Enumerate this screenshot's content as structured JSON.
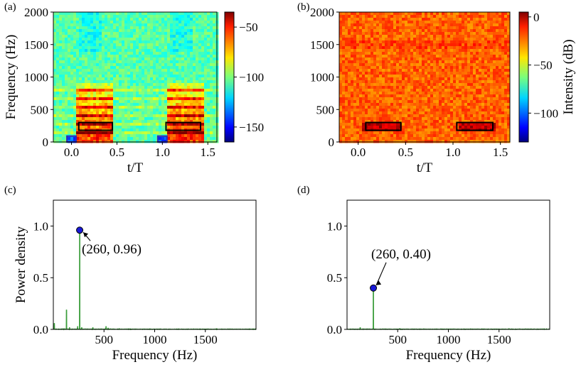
{
  "chart_data": [
    {
      "panel": "(a)",
      "type": "heatmap",
      "description": "Spectrogram",
      "xlabel": "t/T",
      "ylabel": "Frequency (Hz)",
      "xlim": [
        -0.2,
        1.6
      ],
      "ylim": [
        0,
        2000
      ],
      "xticks": [
        0.0,
        0.5,
        1.0,
        1.5
      ],
      "xtick_labels": [
        "0.0",
        "0.5",
        "1.0",
        "1.5"
      ],
      "yticks": [
        0,
        500,
        1000,
        1500,
        2000
      ],
      "ytick_labels": [
        "0",
        "500",
        "1000",
        "1500",
        "2000"
      ],
      "colorbar": {
        "range": [
          -165,
          -35
        ],
        "ticks": [
          -50,
          -100,
          -150
        ],
        "tick_labels": [
          "−50",
          "−100",
          "−150"
        ],
        "label": ""
      },
      "harmonic_lines_hz": [
        130,
        260,
        390,
        520,
        650,
        780
      ],
      "burst_intervals_t": [
        [
          0.05,
          0.45
        ],
        [
          1.05,
          1.45
        ]
      ],
      "black_boxes": [
        {
          "t": [
            0.08,
            0.45
          ],
          "f": [
            180,
            300
          ]
        },
        {
          "t": [
            1.04,
            1.42
          ],
          "f": [
            180,
            300
          ]
        }
      ],
      "blue_boxes": [
        {
          "t": [
            -0.05,
            0.05
          ],
          "f": [
            0,
            90
          ]
        },
        {
          "t": [
            0.95,
            1.05
          ],
          "f": [
            0,
            90
          ]
        }
      ]
    },
    {
      "panel": "(b)",
      "type": "heatmap",
      "description": "Spectrogram",
      "xlabel": "t/T",
      "ylabel": "",
      "xlim": [
        -0.2,
        1.6
      ],
      "ylim": [
        0,
        2000
      ],
      "xticks": [
        0.0,
        0.5,
        1.0,
        1.5
      ],
      "xtick_labels": [
        "0.0",
        "0.5",
        "1.0",
        "1.5"
      ],
      "yticks": [
        0,
        500,
        1000,
        1500,
        2000
      ],
      "ytick_labels": [
        "0",
        "500",
        "1000",
        "1500",
        "2000"
      ],
      "colorbar": {
        "range": [
          -130,
          5
        ],
        "ticks": [
          0,
          -50,
          -100
        ],
        "tick_labels": [
          "0",
          "−50",
          "−100"
        ],
        "label": "Intensity (dB)"
      },
      "black_boxes": [
        {
          "t": [
            0.08,
            0.45
          ],
          "f": [
            180,
            300
          ]
        },
        {
          "t": [
            1.04,
            1.42
          ],
          "f": [
            180,
            300
          ]
        }
      ]
    },
    {
      "panel": "(c)",
      "type": "line",
      "xlabel": "Frequency (Hz)",
      "ylabel": "Power density",
      "xlim": [
        0,
        2000
      ],
      "ylim": [
        0,
        1.25
      ],
      "xticks": [
        500,
        1000,
        1500
      ],
      "xtick_labels": [
        "500",
        "1000",
        "1500"
      ],
      "yticks": [
        0,
        0.5,
        1.0
      ],
      "ytick_labels": [
        "0.0",
        "0.5",
        "1.0"
      ],
      "peaks": [
        {
          "x": 10,
          "y": 0.06
        },
        {
          "x": 130,
          "y": 0.19
        },
        {
          "x": 160,
          "y": 0.02
        },
        {
          "x": 240,
          "y": 0.03
        },
        {
          "x": 260,
          "y": 0.96
        },
        {
          "x": 280,
          "y": 0.02
        },
        {
          "x": 390,
          "y": 0.02
        },
        {
          "x": 520,
          "y": 0.03
        },
        {
          "x": 540,
          "y": 0.015
        },
        {
          "x": 650,
          "y": 0.01
        }
      ],
      "marker": {
        "x": 260,
        "y": 0.96
      },
      "annotation": "(260, 0.96)"
    },
    {
      "panel": "(d)",
      "type": "line",
      "xlabel": "Frequency (Hz)",
      "ylabel": "",
      "xlim": [
        0,
        2000
      ],
      "ylim": [
        0,
        1.25
      ],
      "xticks": [
        500,
        1000,
        1500
      ],
      "xtick_labels": [
        "500",
        "1000",
        "1500"
      ],
      "yticks": [
        0,
        0.5,
        1.0
      ],
      "ytick_labels": [
        "0.0",
        "0.5",
        "1.0"
      ],
      "peaks": [
        {
          "x": 130,
          "y": 0.02
        },
        {
          "x": 260,
          "y": 0.4
        },
        {
          "x": 520,
          "y": 0.01
        },
        {
          "x": 1000,
          "y": 0.005
        },
        {
          "x": 1600,
          "y": 0.006
        }
      ],
      "marker": {
        "x": 260,
        "y": 0.4
      },
      "annotation": "(260, 0.40)"
    }
  ],
  "colors": {
    "line": "#3a9d3a",
    "marker_fill": "#1a1ad8",
    "box_black": "#000000",
    "box_blue": "#2d2db8"
  }
}
